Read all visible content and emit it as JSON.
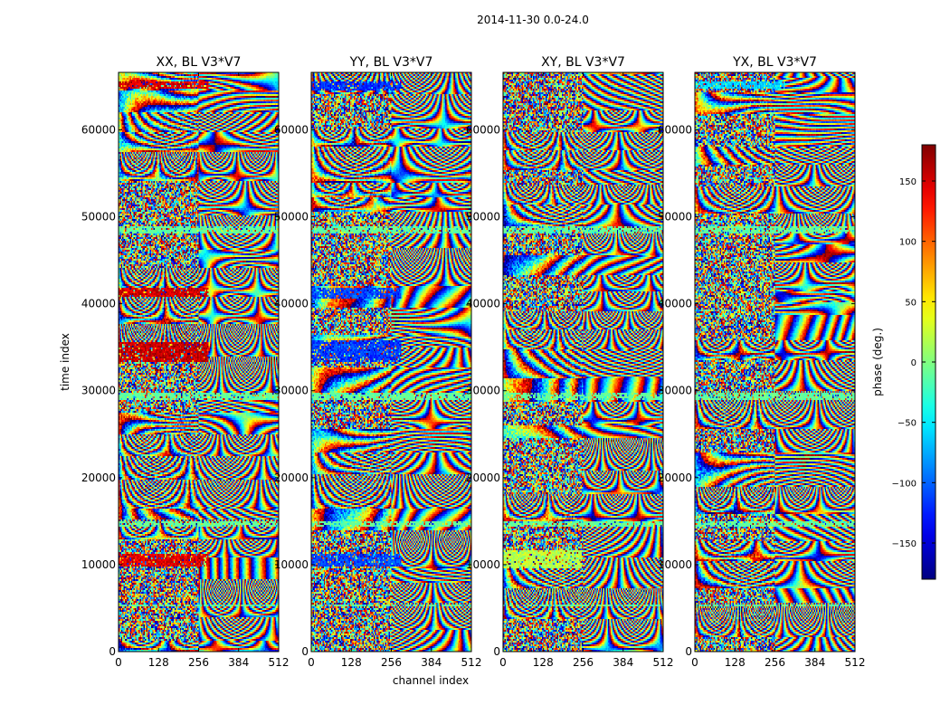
{
  "chart_data": {
    "type": "heatmap",
    "suptitle": "2014-11-30 0.0-24.0",
    "xlabel": "channel index",
    "ylabel": "time index",
    "xlim": [
      0,
      512
    ],
    "ylim": [
      0,
      66600
    ],
    "xticks": [
      0,
      128,
      256,
      384,
      512
    ],
    "yticks": [
      0,
      10000,
      20000,
      30000,
      40000,
      50000,
      60000
    ],
    "colormap": "jet",
    "panels": [
      {
        "title": "XX, BL V3*V7"
      },
      {
        "title": "YY, BL V3*V7"
      },
      {
        "title": "XY, BL V3*V7"
      },
      {
        "title": "YX, BL V3*V7"
      }
    ],
    "colorbar": {
      "label": "phase (deg.)",
      "range": [
        -180,
        180
      ],
      "ticks": [
        150,
        100,
        50,
        0,
        -50,
        -100,
        -150
      ]
    },
    "grid": false,
    "dense_value_bands": [
      {
        "panel": 0,
        "y_range": [
          64800,
          65600
        ],
        "x_range": [
          0,
          288
        ],
        "phase_deg": 150
      },
      {
        "panel": 0,
        "y_range": [
          40800,
          41800
        ],
        "x_range": [
          0,
          288
        ],
        "phase_deg": 150
      },
      {
        "panel": 0,
        "y_range": [
          33200,
          35600
        ],
        "x_range": [
          0,
          288
        ],
        "phase_deg": 155
      },
      {
        "panel": 0,
        "y_range": [
          9800,
          11200
        ],
        "x_range": [
          0,
          288
        ],
        "phase_deg": 145
      },
      {
        "panel": 1,
        "y_range": [
          64600,
          65600
        ],
        "x_range": [
          0,
          288
        ],
        "phase_deg": -120
      },
      {
        "panel": 1,
        "y_range": [
          40600,
          41800
        ],
        "x_range": [
          0,
          288
        ],
        "phase_deg": -110
      },
      {
        "panel": 1,
        "y_range": [
          33200,
          35800
        ],
        "x_range": [
          0,
          288
        ],
        "phase_deg": -115
      },
      {
        "panel": 1,
        "y_range": [
          9800,
          11200
        ],
        "x_range": [
          0,
          288
        ],
        "phase_deg": -110
      },
      {
        "panel": 2,
        "y_range": [
          9600,
          11600
        ],
        "x_range": [
          0,
          250
        ],
        "phase_deg": 20
      },
      {
        "panel": 3,
        "y_range": [
          64800,
          65600
        ],
        "x_range": [
          0,
          288
        ],
        "phase_deg": -60
      }
    ],
    "flat_bands_time": [
      [
        48000,
        49000
      ],
      [
        29000,
        29700
      ],
      [
        14400,
        15000
      ],
      [
        5100,
        5400
      ]
    ]
  }
}
